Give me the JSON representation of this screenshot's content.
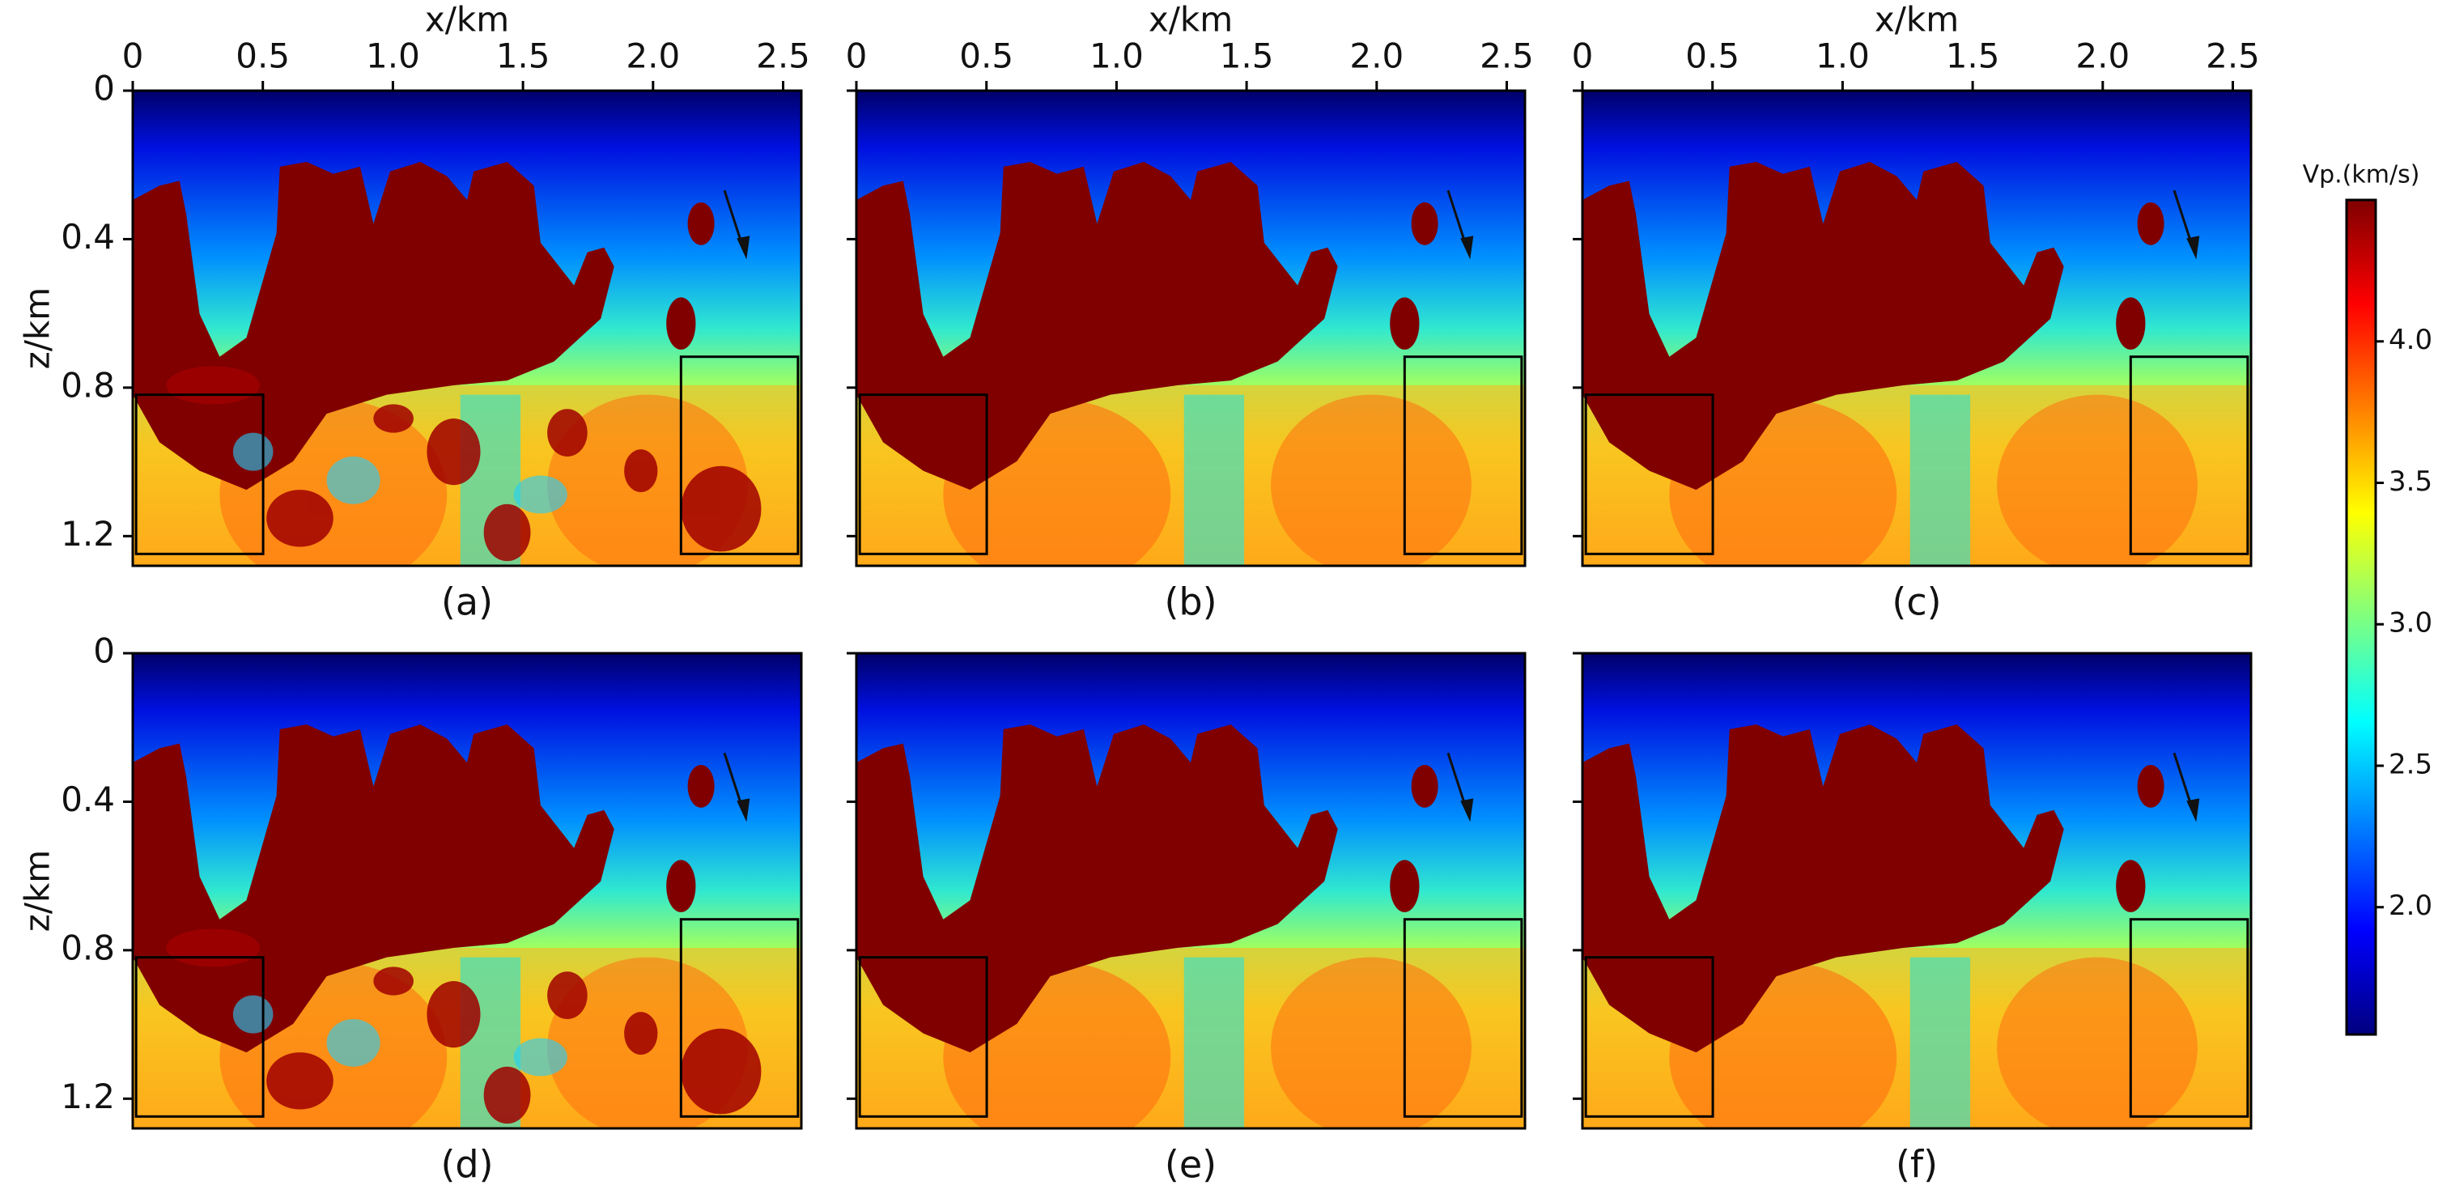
{
  "colorbar": {
    "label": "Vp.(km/s)",
    "lim": [
      1.55,
      4.5
    ],
    "ticks": [
      {
        "value": 2,
        "label": "2.0"
      },
      2.5,
      {
        "value": 3,
        "label": "3.0"
      },
      3.5,
      {
        "value": 4,
        "label": "4.0"
      }
    ]
  },
  "chart_data": [
    {
      "type": "heatmap",
      "caption": "(a)",
      "xlabel": "x/km",
      "ylabel": "z/km",
      "noisy": true,
      "xlim": [
        0,
        2.57
      ],
      "ylim": [
        0,
        1.28
      ],
      "xticks": [
        0,
        0.5,
        {
          "value": 1,
          "label": "1.0"
        },
        1.5,
        {
          "value": 2,
          "label": "2.0"
        },
        2.5
      ],
      "yticks": [
        0,
        0.4,
        0.8,
        1.2
      ],
      "ytick_labels": true
    },
    {
      "type": "heatmap",
      "caption": "(b)",
      "xlabel": "x/km",
      "noisy": false,
      "xlim": [
        0,
        2.57
      ],
      "ylim": [
        0,
        1.28
      ],
      "xticks": [
        0,
        0.5,
        {
          "value": 1,
          "label": "1.0"
        },
        1.5,
        {
          "value": 2,
          "label": "2.0"
        },
        2.5
      ],
      "yticks": [
        0,
        0.4,
        0.8,
        1.2
      ],
      "ytick_labels": false
    },
    {
      "type": "heatmap",
      "caption": "(c)",
      "xlabel": "x/km",
      "noisy": false,
      "xlim": [
        0,
        2.57
      ],
      "ylim": [
        0,
        1.28
      ],
      "xticks": [
        0,
        0.5,
        {
          "value": 1,
          "label": "1.0"
        },
        1.5,
        {
          "value": 2,
          "label": "2.0"
        },
        2.5
      ],
      "yticks": [
        0,
        0.4,
        0.8,
        1.2
      ],
      "ytick_labels": false
    },
    {
      "type": "heatmap",
      "caption": "(d)",
      "ylabel": "z/km",
      "noisy": true,
      "xlim": [
        0,
        2.57
      ],
      "ylim": [
        0,
        1.28
      ],
      "yticks": [
        0,
        0.4,
        0.8,
        1.2
      ],
      "ytick_labels": true
    },
    {
      "type": "heatmap",
      "caption": "(e)",
      "noisy": false,
      "xlim": [
        0,
        2.57
      ],
      "ylim": [
        0,
        1.28
      ],
      "yticks": [
        0,
        0.4,
        0.8,
        1.2
      ],
      "ytick_labels": false
    },
    {
      "type": "heatmap",
      "caption": "(f)",
      "noisy": false,
      "xlim": [
        0,
        2.57
      ],
      "ylim": [
        0,
        1.28
      ],
      "yticks": [
        0,
        0.4,
        0.8,
        1.2
      ],
      "ytick_labels": false
    }
  ]
}
